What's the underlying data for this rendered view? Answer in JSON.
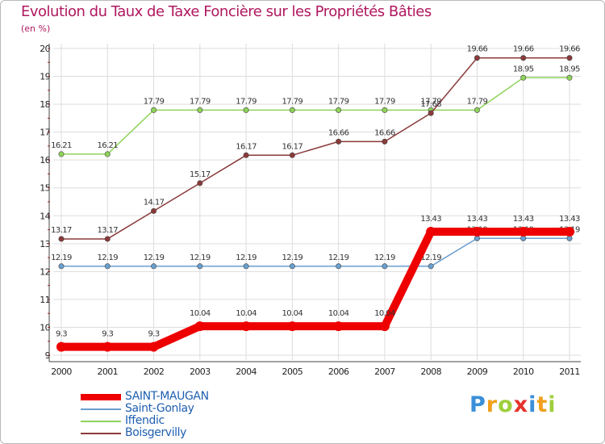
{
  "title": "Evolution du Taux de Taxe Foncière sur les Propriétés Bâties",
  "unit": "(en %)",
  "brand": {
    "text": "Proxiti",
    "letters": [
      "P",
      "r",
      "o",
      "x",
      "i",
      "t",
      "i"
    ],
    "colors": [
      "#3a8fd9",
      "#f2a01c",
      "#9fcf3c",
      "#e5322d",
      "#3a8fd9",
      "#f2a01c",
      "#9fcf3c"
    ]
  },
  "chart_data": {
    "type": "line",
    "title": "Evolution du Taux de Taxe Foncière sur les Propriétés Bâties",
    "ylabel": "(en %)",
    "xlabel": "",
    "categories": [
      "2000",
      "2001",
      "2002",
      "2003",
      "2004",
      "2005",
      "2006",
      "2007",
      "2008",
      "2009",
      "2010",
      "2011"
    ],
    "yticks": [
      9,
      10,
      11,
      12,
      13,
      14,
      15,
      16,
      17,
      18,
      19,
      20
    ],
    "ylim": [
      9,
      20
    ],
    "grid": true,
    "legend": "bottom-left",
    "series": [
      {
        "name": "SAINT-MAUGAN",
        "color": "#ee0000",
        "width": "thick",
        "values": [
          9.3,
          9.3,
          9.3,
          10.04,
          10.04,
          10.04,
          10.04,
          10.04,
          13.43,
          13.43,
          13.43,
          13.43
        ],
        "labels": [
          "9.3",
          "9.3",
          "9.3",
          "10.04",
          "10.04",
          "10.04",
          "10.04",
          "10.04",
          "13.43",
          "13.43",
          "13.43",
          "13.43"
        ]
      },
      {
        "name": "Saint-Gonlay",
        "color": "#6a9fce",
        "width": "thin",
        "values": [
          12.19,
          12.19,
          12.19,
          12.19,
          12.19,
          12.19,
          12.19,
          12.19,
          12.19,
          13.19,
          13.19,
          13.19
        ],
        "labels": [
          "12.19",
          "12.19",
          "12.19",
          "12.19",
          "12.19",
          "12.19",
          "12.19",
          "12.19",
          "12.19",
          "13.19",
          "13.19",
          "13.19"
        ]
      },
      {
        "name": "Iffendic",
        "color": "#8fd35a",
        "width": "thin",
        "values": [
          16.21,
          16.21,
          17.79,
          17.79,
          17.79,
          17.79,
          17.79,
          17.79,
          17.79,
          17.79,
          18.95,
          18.95
        ],
        "labels": [
          "16.21",
          "16.21",
          "17.79",
          "17.79",
          "17.79",
          "17.79",
          "17.79",
          "17.79",
          "17.79",
          "17.79",
          "18.95",
          "18.95"
        ]
      },
      {
        "name": "Boisgervilly",
        "color": "#8b3a3a",
        "width": "thin",
        "values": [
          13.17,
          13.17,
          14.17,
          15.17,
          16.17,
          16.17,
          16.66,
          16.66,
          17.68,
          19.66,
          19.66,
          19.66
        ],
        "labels": [
          "13.17",
          "13.17",
          "14.17",
          "15.17",
          "16.17",
          "16.17",
          "16.66",
          "16.66",
          "17.68",
          "19.66",
          "19.66",
          "19.66"
        ]
      }
    ]
  }
}
